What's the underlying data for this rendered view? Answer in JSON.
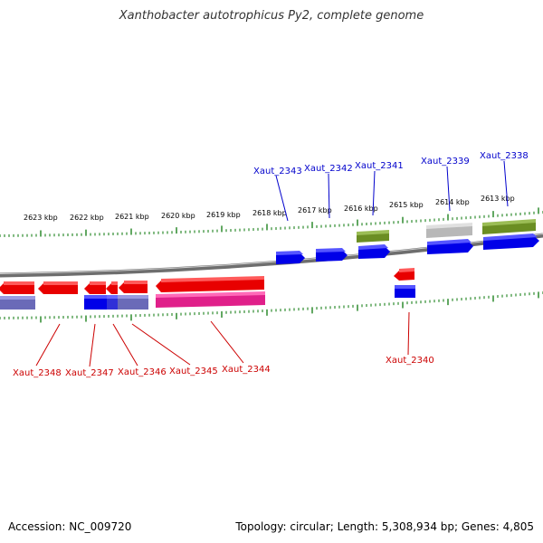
{
  "title": "Xanthobacter autotrophicus Py2, complete genome",
  "footer": {
    "accession": "Accession: NC_009720",
    "summary": "Topology: circular; Length: 5,308,934 bp; Genes: 4,805"
  },
  "scale_labels": [
    "2623 kbp",
    "2622 kbp",
    "2621 kbp",
    "2620 kbp",
    "2619 kbp",
    "2618 kbp",
    "2617 kbp",
    "2616 kbp",
    "2615 kbp",
    "2614 kbp",
    "2613 kbp"
  ],
  "gene_labels": [
    {
      "text": "Xaut_2343",
      "strand": "forward",
      "color": "#0000cc"
    },
    {
      "text": "Xaut_2342",
      "strand": "forward",
      "color": "#0000cc"
    },
    {
      "text": "Xaut_2341",
      "strand": "forward",
      "color": "#0000cc"
    },
    {
      "text": "Xaut_2339",
      "strand": "forward",
      "color": "#0000cc"
    },
    {
      "text": "Xaut_2338",
      "strand": "forward",
      "color": "#0000cc"
    },
    {
      "text": "Xaut_2348",
      "strand": "reverse",
      "color": "#cc0000"
    },
    {
      "text": "Xaut_2347",
      "strand": "reverse",
      "color": "#cc0000"
    },
    {
      "text": "Xaut_2346",
      "strand": "reverse",
      "color": "#cc0000"
    },
    {
      "text": "Xaut_2345",
      "strand": "reverse",
      "color": "#cc0000"
    },
    {
      "text": "Xaut_2344",
      "strand": "reverse",
      "color": "#cc0000"
    },
    {
      "text": "Xaut_2340",
      "strand": "reverse",
      "color": "#cc0000"
    }
  ],
  "colors": {
    "backbone": "#777777",
    "tick": "#2e8b2e",
    "forward_cds": "#0000ee",
    "reverse_cds": "#ee0000",
    "olive_feature": "#6b8e23",
    "grey_feature": "#b0b0b0",
    "magenta_feature": "#e0208a",
    "slate_feature": "#6a6ab8"
  }
}
